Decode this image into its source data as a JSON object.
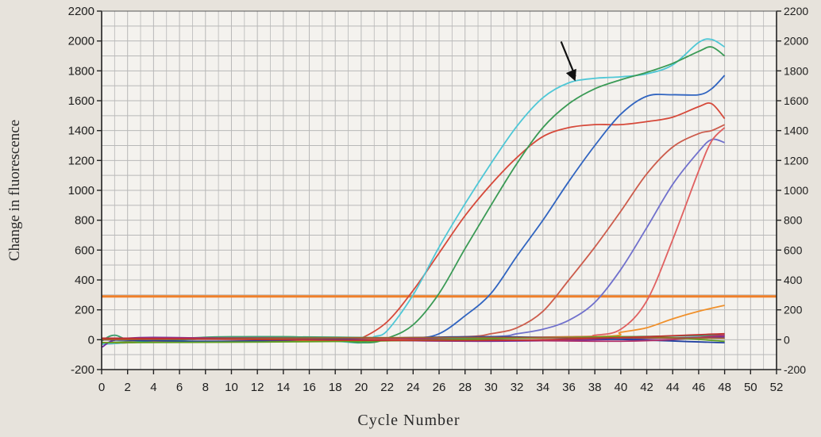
{
  "chart_data": {
    "type": "line",
    "title": "",
    "xlabel": "Cycle Number",
    "ylabel": "Change in fluorescence",
    "xlim": [
      0,
      52
    ],
    "ylim": [
      -200,
      2200
    ],
    "x_ticks": [
      "0",
      "2",
      "4",
      "6",
      "8",
      "10",
      "12",
      "14",
      "16",
      "18",
      "20",
      "22",
      "24",
      "26",
      "28",
      "30",
      "32",
      "34",
      "36",
      "38",
      "40",
      "42",
      "44",
      "46",
      "48",
      "50",
      "52"
    ],
    "y_ticks_left": [
      "-200",
      "0",
      "200",
      "400",
      "600",
      "800",
      "1000",
      "1200",
      "1400",
      "1600",
      "1800",
      "2000",
      "2200"
    ],
    "y_ticks_right": [
      "-200",
      "0",
      "200",
      "400",
      "600",
      "800",
      "1000",
      "1200",
      "1400",
      "1600",
      "1800",
      "2000",
      "2200"
    ],
    "grid": true,
    "threshold": {
      "y": 290,
      "color": "#f0802a"
    },
    "annotation": {
      "type": "arrow",
      "x": 36.5,
      "y": 1720
    },
    "series": [
      {
        "color": "#d6493a",
        "points": [
          [
            0,
            -30
          ],
          [
            12,
            20
          ],
          [
            16,
            -10
          ],
          [
            19,
            0
          ],
          [
            20,
            10
          ],
          [
            22,
            120
          ],
          [
            24,
            330
          ],
          [
            26,
            580
          ],
          [
            28,
            830
          ],
          [
            30,
            1040
          ],
          [
            32,
            1220
          ],
          [
            34,
            1360
          ],
          [
            36,
            1420
          ],
          [
            38,
            1440
          ],
          [
            40,
            1440
          ],
          [
            42,
            1460
          ],
          [
            44,
            1490
          ],
          [
            46,
            1560
          ],
          [
            47,
            1580
          ],
          [
            48,
            1480
          ]
        ]
      },
      {
        "color": "#4fc7d6",
        "points": [
          [
            0,
            -30
          ],
          [
            12,
            20
          ],
          [
            18,
            -10
          ],
          [
            20,
            -20
          ],
          [
            21,
            20
          ],
          [
            22,
            60
          ],
          [
            24,
            300
          ],
          [
            26,
            620
          ],
          [
            28,
            910
          ],
          [
            30,
            1180
          ],
          [
            32,
            1430
          ],
          [
            34,
            1620
          ],
          [
            36,
            1720
          ],
          [
            38,
            1750
          ],
          [
            40,
            1760
          ],
          [
            42,
            1780
          ],
          [
            44,
            1840
          ],
          [
            46,
            1990
          ],
          [
            47,
            2010
          ],
          [
            48,
            1960
          ]
        ]
      },
      {
        "color": "#3a9a55",
        "points": [
          [
            0,
            -20
          ],
          [
            14,
            20
          ],
          [
            20,
            -20
          ],
          [
            22,
            10
          ],
          [
            24,
            100
          ],
          [
            26,
            310
          ],
          [
            28,
            610
          ],
          [
            30,
            900
          ],
          [
            32,
            1180
          ],
          [
            34,
            1420
          ],
          [
            36,
            1580
          ],
          [
            38,
            1680
          ],
          [
            40,
            1740
          ],
          [
            42,
            1790
          ],
          [
            44,
            1850
          ],
          [
            46,
            1930
          ],
          [
            47,
            1960
          ],
          [
            48,
            1900
          ]
        ]
      },
      {
        "color": "#3064c0",
        "points": [
          [
            0,
            -20
          ],
          [
            20,
            0
          ],
          [
            24,
            10
          ],
          [
            26,
            40
          ],
          [
            28,
            160
          ],
          [
            30,
            310
          ],
          [
            32,
            560
          ],
          [
            34,
            800
          ],
          [
            36,
            1060
          ],
          [
            38,
            1300
          ],
          [
            40,
            1510
          ],
          [
            42,
            1630
          ],
          [
            44,
            1640
          ],
          [
            46,
            1640
          ],
          [
            47,
            1680
          ],
          [
            48,
            1770
          ]
        ]
      },
      {
        "color": "#cc5c4c",
        "points": [
          [
            0,
            -20
          ],
          [
            20,
            0
          ],
          [
            28,
            20
          ],
          [
            30,
            40
          ],
          [
            32,
            80
          ],
          [
            34,
            190
          ],
          [
            36,
            400
          ],
          [
            38,
            620
          ],
          [
            40,
            860
          ],
          [
            42,
            1110
          ],
          [
            44,
            1290
          ],
          [
            46,
            1380
          ],
          [
            47,
            1400
          ],
          [
            48,
            1440
          ]
        ]
      },
      {
        "color": "#7070cc",
        "points": [
          [
            0,
            -20
          ],
          [
            20,
            0
          ],
          [
            30,
            20
          ],
          [
            32,
            40
          ],
          [
            34,
            70
          ],
          [
            36,
            130
          ],
          [
            38,
            250
          ],
          [
            40,
            470
          ],
          [
            42,
            750
          ],
          [
            44,
            1040
          ],
          [
            46,
            1260
          ],
          [
            47,
            1340
          ],
          [
            48,
            1320
          ]
        ]
      },
      {
        "color": "#e06060",
        "points": [
          [
            0,
            -20
          ],
          [
            20,
            0
          ],
          [
            36,
            20
          ],
          [
            38,
            30
          ],
          [
            40,
            70
          ],
          [
            42,
            260
          ],
          [
            44,
            670
          ],
          [
            46,
            1130
          ],
          [
            47,
            1330
          ],
          [
            48,
            1420
          ]
        ]
      },
      {
        "color": "#f0902a",
        "points": [
          [
            0,
            -20
          ],
          [
            20,
            0
          ],
          [
            38,
            20
          ],
          [
            40,
            50
          ],
          [
            42,
            80
          ],
          [
            44,
            140
          ],
          [
            46,
            190
          ],
          [
            48,
            230
          ]
        ]
      },
      {
        "color": "#40a070",
        "points": [
          [
            0,
            -10
          ],
          [
            1,
            30
          ],
          [
            3,
            -10
          ],
          [
            10,
            20
          ],
          [
            30,
            10
          ],
          [
            48,
            30
          ]
        ]
      },
      {
        "color": "#7030a0",
        "points": [
          [
            0,
            -50
          ],
          [
            2,
            10
          ],
          [
            10,
            10
          ],
          [
            30,
            -10
          ],
          [
            48,
            20
          ]
        ]
      },
      {
        "color": "#2040a0",
        "points": [
          [
            0,
            0
          ],
          [
            10,
            -10
          ],
          [
            30,
            20
          ],
          [
            48,
            -20
          ]
        ]
      },
      {
        "color": "#b0306a",
        "points": [
          [
            0,
            10
          ],
          [
            20,
            10
          ],
          [
            40,
            -10
          ],
          [
            48,
            30
          ]
        ]
      },
      {
        "color": "#60a020",
        "points": [
          [
            0,
            -20
          ],
          [
            20,
            -10
          ],
          [
            40,
            20
          ],
          [
            48,
            -10
          ]
        ]
      },
      {
        "color": "#a06030",
        "points": [
          [
            0,
            0
          ],
          [
            25,
            15
          ],
          [
            48,
            10
          ]
        ]
      },
      {
        "color": "#c03030",
        "points": [
          [
            0,
            10
          ],
          [
            30,
            -5
          ],
          [
            48,
            40
          ]
        ]
      }
    ]
  }
}
